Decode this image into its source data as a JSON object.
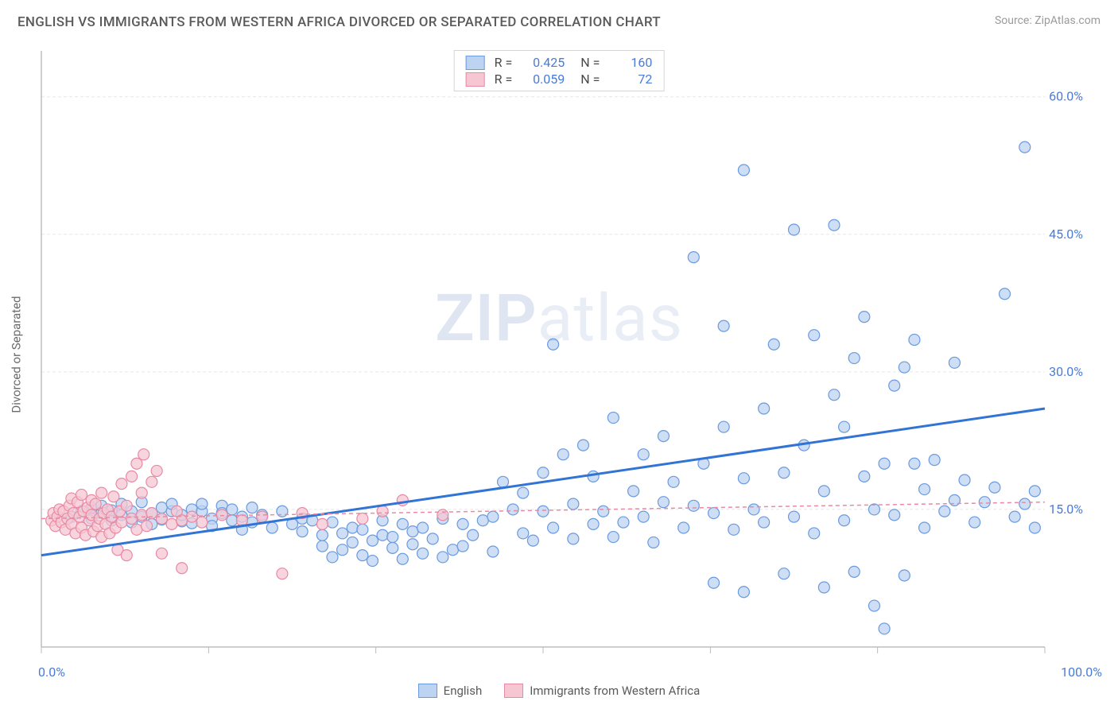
{
  "title": "ENGLISH VS IMMIGRANTS FROM WESTERN AFRICA DIVORCED OR SEPARATED CORRELATION CHART",
  "source": "Source: ZipAtlas.com",
  "ylabel": "Divorced or Separated",
  "watermark_bold": "ZIP",
  "watermark_rest": "atlas",
  "chart": {
    "type": "scatter",
    "xlim": [
      0,
      100
    ],
    "ylim": [
      0,
      65
    ],
    "yticks": [
      15,
      30,
      45,
      60
    ],
    "ytick_labels": [
      "15.0%",
      "30.0%",
      "45.0%",
      "60.0%"
    ],
    "xtick_positions": [
      0,
      16.67,
      33.33,
      50,
      66.67,
      83.33,
      100
    ],
    "x_min_label": "0.0%",
    "x_max_label": "100.0%",
    "background_color": "#ffffff",
    "grid_color": "#e7e7e7",
    "axis_line_color": "#bdbdbd",
    "marker_radius": 7,
    "series": [
      {
        "name": "English",
        "fill": "#bcd3f2",
        "stroke": "#6a9adf",
        "trend": {
          "y_at_x0": 10.0,
          "y_at_x100": 26.0,
          "stroke": "#3273d6",
          "width": 3,
          "dash": ""
        },
        "legend_r": "0.425",
        "legend_n": "160",
        "points": [
          [
            3,
            14.2
          ],
          [
            4,
            14.8
          ],
          [
            5,
            14.0
          ],
          [
            5,
            15.2
          ],
          [
            6,
            14.6
          ],
          [
            6,
            15.4
          ],
          [
            7,
            13.8
          ],
          [
            7,
            14.9
          ],
          [
            8,
            14.4
          ],
          [
            8,
            15.6
          ],
          [
            9,
            13.6
          ],
          [
            9,
            14.8
          ],
          [
            10,
            14.2
          ],
          [
            10,
            15.8
          ],
          [
            11,
            13.4
          ],
          [
            11,
            14.6
          ],
          [
            12,
            15.2
          ],
          [
            12,
            13.9
          ],
          [
            13,
            14.8
          ],
          [
            13,
            15.6
          ],
          [
            14,
            13.7
          ],
          [
            14,
            14.4
          ],
          [
            15,
            15.0
          ],
          [
            15,
            13.5
          ],
          [
            16,
            14.8
          ],
          [
            16,
            15.6
          ],
          [
            17,
            14.0
          ],
          [
            17,
            13.2
          ],
          [
            18,
            15.4
          ],
          [
            18,
            14.6
          ],
          [
            19,
            13.8
          ],
          [
            19,
            15.0
          ],
          [
            20,
            14.2
          ],
          [
            20,
            12.8
          ],
          [
            21,
            13.6
          ],
          [
            21,
            15.2
          ],
          [
            22,
            14.4
          ],
          [
            23,
            13.0
          ],
          [
            24,
            14.8
          ],
          [
            25,
            13.4
          ],
          [
            26,
            12.6
          ],
          [
            26,
            14.0
          ],
          [
            27,
            13.8
          ],
          [
            28,
            12.2
          ],
          [
            28,
            11.0
          ],
          [
            29,
            13.6
          ],
          [
            29,
            9.8
          ],
          [
            30,
            12.4
          ],
          [
            30,
            10.6
          ],
          [
            31,
            13.0
          ],
          [
            31,
            11.4
          ],
          [
            32,
            10.0
          ],
          [
            32,
            12.8
          ],
          [
            33,
            11.6
          ],
          [
            33,
            9.4
          ],
          [
            34,
            12.2
          ],
          [
            34,
            13.8
          ],
          [
            35,
            10.8
          ],
          [
            35,
            12.0
          ],
          [
            36,
            9.6
          ],
          [
            36,
            13.4
          ],
          [
            37,
            11.2
          ],
          [
            37,
            12.6
          ],
          [
            38,
            10.2
          ],
          [
            38,
            13.0
          ],
          [
            39,
            11.8
          ],
          [
            40,
            9.8
          ],
          [
            40,
            14.0
          ],
          [
            41,
            10.6
          ],
          [
            42,
            13.4
          ],
          [
            42,
            11.0
          ],
          [
            43,
            12.2
          ],
          [
            44,
            13.8
          ],
          [
            45,
            10.4
          ],
          [
            45,
            14.2
          ],
          [
            46,
            18.0
          ],
          [
            47,
            15.0
          ],
          [
            48,
            12.4
          ],
          [
            48,
            16.8
          ],
          [
            49,
            11.6
          ],
          [
            50,
            14.8
          ],
          [
            50,
            19.0
          ],
          [
            51,
            13.0
          ],
          [
            51,
            33.0
          ],
          [
            52,
            21.0
          ],
          [
            53,
            15.6
          ],
          [
            53,
            11.8
          ],
          [
            54,
            22.0
          ],
          [
            55,
            13.4
          ],
          [
            55,
            18.6
          ],
          [
            56,
            14.8
          ],
          [
            57,
            25.0
          ],
          [
            57,
            12.0
          ],
          [
            58,
            13.6
          ],
          [
            59,
            17.0
          ],
          [
            60,
            14.2
          ],
          [
            60,
            21.0
          ],
          [
            61,
            11.4
          ],
          [
            62,
            15.8
          ],
          [
            62,
            23.0
          ],
          [
            63,
            18.0
          ],
          [
            64,
            13.0
          ],
          [
            65,
            42.5
          ],
          [
            65,
            15.4
          ],
          [
            66,
            20.0
          ],
          [
            67,
            7.0
          ],
          [
            67,
            14.6
          ],
          [
            68,
            24.0
          ],
          [
            68,
            35.0
          ],
          [
            69,
            12.8
          ],
          [
            70,
            6.0
          ],
          [
            70,
            18.4
          ],
          [
            70,
            52.0
          ],
          [
            71,
            15.0
          ],
          [
            72,
            26.0
          ],
          [
            72,
            13.6
          ],
          [
            73,
            33.0
          ],
          [
            74,
            19.0
          ],
          [
            74,
            8.0
          ],
          [
            75,
            45.5
          ],
          [
            75,
            14.2
          ],
          [
            76,
            22.0
          ],
          [
            77,
            34.0
          ],
          [
            77,
            12.4
          ],
          [
            78,
            6.5
          ],
          [
            78,
            17.0
          ],
          [
            79,
            27.5
          ],
          [
            79,
            46.0
          ],
          [
            80,
            13.8
          ],
          [
            80,
            24.0
          ],
          [
            81,
            31.5
          ],
          [
            81,
            8.2
          ],
          [
            82,
            18.6
          ],
          [
            82,
            36.0
          ],
          [
            83,
            15.0
          ],
          [
            83,
            4.5
          ],
          [
            84,
            20.0
          ],
          [
            84,
            2.0
          ],
          [
            85,
            28.5
          ],
          [
            85,
            14.4
          ],
          [
            86,
            30.5
          ],
          [
            86,
            7.8
          ],
          [
            87,
            20.0
          ],
          [
            87,
            33.5
          ],
          [
            88,
            13.0
          ],
          [
            88,
            17.2
          ],
          [
            89,
            20.4
          ],
          [
            90,
            14.8
          ],
          [
            91,
            16.0
          ],
          [
            91,
            31.0
          ],
          [
            92,
            18.2
          ],
          [
            93,
            13.6
          ],
          [
            94,
            15.8
          ],
          [
            95,
            17.4
          ],
          [
            96,
            38.5
          ],
          [
            97,
            14.2
          ],
          [
            98,
            15.6
          ],
          [
            98,
            54.5
          ],
          [
            99,
            17.0
          ],
          [
            99,
            13.0
          ]
        ]
      },
      {
        "name": "Immigrants from Western Africa",
        "fill": "#f6c7d3",
        "stroke": "#e88aa3",
        "trend": {
          "y_at_x0": 14.0,
          "y_at_x100": 15.8,
          "stroke": "#e88aa3",
          "width": 1.5,
          "dash": "5,4"
        },
        "legend_r": "0.059",
        "legend_n": "72",
        "points": [
          [
            1.0,
            13.8
          ],
          [
            1.2,
            14.6
          ],
          [
            1.4,
            13.2
          ],
          [
            1.6,
            14.2
          ],
          [
            1.8,
            15.0
          ],
          [
            2.0,
            13.6
          ],
          [
            2.2,
            14.8
          ],
          [
            2.4,
            12.8
          ],
          [
            2.6,
            14.0
          ],
          [
            2.8,
            15.4
          ],
          [
            3.0,
            13.4
          ],
          [
            3.0,
            16.2
          ],
          [
            3.2,
            14.6
          ],
          [
            3.4,
            12.4
          ],
          [
            3.6,
            15.8
          ],
          [
            3.8,
            14.2
          ],
          [
            4.0,
            13.0
          ],
          [
            4.0,
            16.6
          ],
          [
            4.2,
            14.8
          ],
          [
            4.4,
            12.2
          ],
          [
            4.6,
            15.2
          ],
          [
            4.8,
            13.8
          ],
          [
            5.0,
            16.0
          ],
          [
            5.0,
            14.4
          ],
          [
            5.2,
            12.6
          ],
          [
            5.4,
            15.6
          ],
          [
            5.6,
            13.2
          ],
          [
            5.8,
            14.0
          ],
          [
            6.0,
            16.8
          ],
          [
            6.0,
            12.0
          ],
          [
            6.2,
            14.6
          ],
          [
            6.4,
            13.4
          ],
          [
            6.6,
            15.0
          ],
          [
            6.8,
            12.4
          ],
          [
            7.0,
            14.2
          ],
          [
            7.2,
            16.4
          ],
          [
            7.4,
            13.0
          ],
          [
            7.6,
            10.6
          ],
          [
            7.8,
            14.8
          ],
          [
            8.0,
            17.8
          ],
          [
            8.0,
            13.6
          ],
          [
            8.5,
            15.4
          ],
          [
            8.5,
            10.0
          ],
          [
            9.0,
            14.0
          ],
          [
            9.0,
            18.6
          ],
          [
            9.5,
            12.8
          ],
          [
            9.5,
            20.0
          ],
          [
            10.0,
            14.4
          ],
          [
            10.0,
            16.8
          ],
          [
            10.2,
            21.0
          ],
          [
            10.5,
            13.2
          ],
          [
            11.0,
            18.0
          ],
          [
            11.0,
            14.6
          ],
          [
            11.5,
            19.2
          ],
          [
            12.0,
            10.2
          ],
          [
            12.0,
            14.0
          ],
          [
            13.0,
            13.4
          ],
          [
            13.5,
            14.8
          ],
          [
            14.0,
            8.6
          ],
          [
            14.0,
            13.8
          ],
          [
            15.0,
            14.2
          ],
          [
            16.0,
            13.6
          ],
          [
            18.0,
            14.4
          ],
          [
            20.0,
            13.8
          ],
          [
            22.0,
            14.2
          ],
          [
            24.0,
            8.0
          ],
          [
            26.0,
            14.6
          ],
          [
            28.0,
            13.4
          ],
          [
            32.0,
            14.0
          ],
          [
            34.0,
            14.8
          ],
          [
            36.0,
            16.0
          ],
          [
            40.0,
            14.4
          ]
        ]
      }
    ]
  },
  "bottom_legend": [
    {
      "label": "English",
      "fill": "#bcd3f2",
      "stroke": "#6a9adf"
    },
    {
      "label": "Immigrants from Western Africa",
      "fill": "#f6c7d3",
      "stroke": "#e88aa3"
    }
  ]
}
